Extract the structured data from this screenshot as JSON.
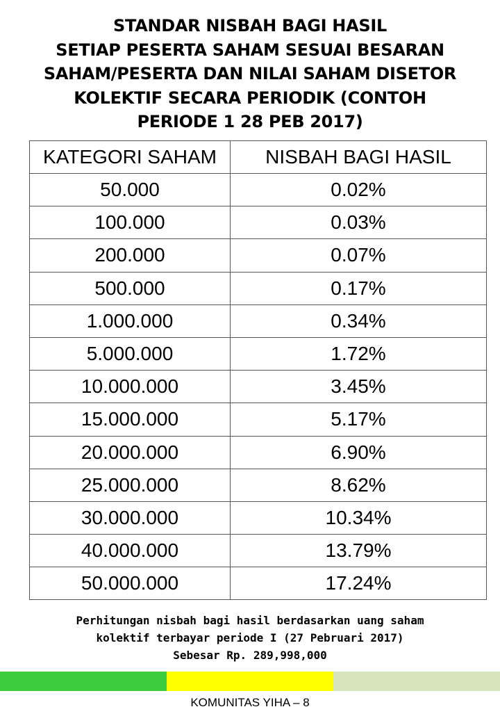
{
  "title_lines": [
    "STANDAR NISBAH BAGI HASIL",
    "SETIAP PESERTA SAHAM SESUAI BESARAN",
    "SAHAM/PESERTA DAN NILAI SAHAM DISETOR",
    "KOLEKTIF SECARA PERIODIK (CONTOH",
    "PERIODE 1 28 PEB 2017)"
  ],
  "table": {
    "headers": [
      "KATEGORI SAHAM",
      "NISBAH BAGI HASIL"
    ],
    "rows": [
      [
        "50.000",
        "0.02%"
      ],
      [
        "100.000",
        "0.03%"
      ],
      [
        "200.000",
        "0.07%"
      ],
      [
        "500.000",
        "0.17%"
      ],
      [
        "1.000.000",
        "0.34%"
      ],
      [
        "5.000.000",
        "1.72%"
      ],
      [
        "10.000.000",
        "3.45%"
      ],
      [
        "15.000.000",
        "5.17%"
      ],
      [
        "20.000.000",
        "6.90%"
      ],
      [
        "25.000.000",
        "8.62%"
      ],
      [
        "30.000.000",
        "10.34%"
      ],
      [
        "40.000.000",
        "13.79%"
      ],
      [
        "50.000.000",
        "17.24%"
      ]
    ]
  },
  "note_lines": [
    "Perhitungan nisbah bagi hasil berdasarkan uang saham",
    "kolektif terbayar periode I (27 Pebruari 2017)",
    "Sebesar Rp. 289,998,000"
  ],
  "color_bar": [
    "#3dcc3d",
    "#ffff00",
    "#d6e4bc"
  ],
  "footer": "KOMUNITAS YIHA – 8"
}
